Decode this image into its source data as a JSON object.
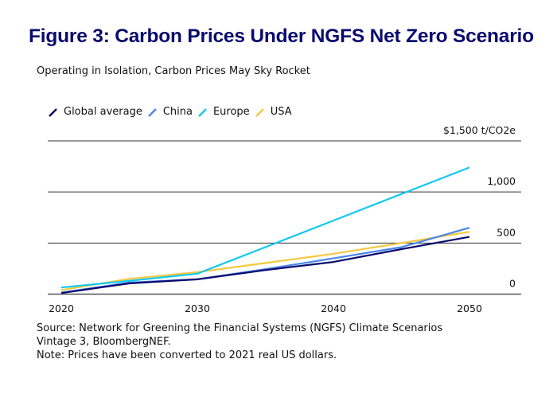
{
  "title": "Figure 3: Carbon Prices Under NGFS Net Zero Scenario",
  "subtitle": "Operating in Isolation, Carbon Prices May Sky Rocket",
  "source_lines": [
    "Source: Network for Greening the Financial Systems (NGFS) Climate Scenarios",
    "Vintage 3, BloombergNEF.",
    "Note: Prices have been converted to 2021 real US dollars."
  ],
  "chart_data": {
    "type": "line",
    "title": "Figure 3: Carbon Prices Under NGFS Net Zero Scenario",
    "subtitle": "Operating in Isolation, Carbon Prices May Sky Rocket",
    "xlabel": "",
    "ylabel": "$ t/CO2e",
    "x": [
      2020,
      2025,
      2030,
      2035,
      2040,
      2045,
      2050
    ],
    "xlim": [
      2019,
      2054
    ],
    "ylim": [
      0,
      1500
    ],
    "xticks": [
      2020,
      2030,
      2040,
      2050
    ],
    "xtick_labels": [
      "2020",
      "2030",
      "2040",
      "2050"
    ],
    "yticks": [
      0,
      500,
      1000,
      1500
    ],
    "ytick_labels": [
      "0",
      "500",
      "1,000",
      "$1,500 t/CO2e"
    ],
    "grid": "horizontal",
    "legend_position": "top-left",
    "series": [
      {
        "name": "Global average",
        "color": "#0a0a6e",
        "values": [
          10,
          105,
          145,
          235,
          315,
          440,
          560
        ]
      },
      {
        "name": "China",
        "color": "#4a86e8",
        "values": [
          15,
          113,
          145,
          245,
          350,
          460,
          650
        ]
      },
      {
        "name": "Europe",
        "color": "#12c8f0",
        "values": [
          65,
          130,
          200,
          460,
          720,
          980,
          1240
        ]
      },
      {
        "name": "USA",
        "color": "#f5c842",
        "values": [
          40,
          150,
          215,
          305,
          395,
          500,
          610
        ]
      }
    ]
  }
}
